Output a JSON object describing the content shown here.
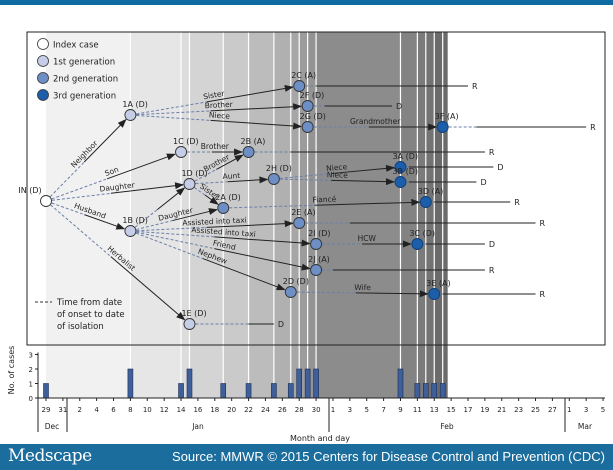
{
  "colors": {
    "index": "#ffffff",
    "gen1": "#c6cde6",
    "gen2": "#6e8fc6",
    "gen3": "#1c5ea9",
    "footer": "#1a6d9c",
    "bar": "#3f5f9a"
  },
  "legend": {
    "items": [
      {
        "label": "Index case",
        "gen": "index"
      },
      {
        "label": "1st generation",
        "gen": "gen1"
      },
      {
        "label": "2nd generation",
        "gen": "gen2"
      },
      {
        "label": "3rd generation",
        "gen": "gen3"
      }
    ],
    "dashed_note": [
      "Time from date",
      "of onset to date",
      "of isolation"
    ]
  },
  "nodes": [
    {
      "id": "IN",
      "label": "IN (D)",
      "gen": "index",
      "onset": "Dec 29"
    },
    {
      "id": "1A",
      "label": "1A (D)",
      "gen": "gen1",
      "onset": "Jan 8"
    },
    {
      "id": "1B",
      "label": "1B (D)",
      "gen": "gen1",
      "onset": "Jan 8"
    },
    {
      "id": "1C",
      "label": "1C (D)",
      "gen": "gen1",
      "onset": "Jan 14"
    },
    {
      "id": "1D",
      "label": "1D (D)",
      "gen": "gen1",
      "onset": "Jan 15"
    },
    {
      "id": "1E",
      "label": "1E (D)",
      "gen": "gen1",
      "onset": "Jan 15",
      "isolated": "Jan 22",
      "outcome": "D",
      "outcome_date": "Jan 25"
    },
    {
      "id": "2A",
      "label": "2A (D)",
      "gen": "gen2",
      "onset": "Jan 19"
    },
    {
      "id": "2B",
      "label": "2B (A)",
      "gen": "gen2",
      "onset": "Jan 22",
      "isolated": "Jan 27",
      "outcome": "R",
      "outcome_date": "Feb 19"
    },
    {
      "id": "2C",
      "label": "2C (A)",
      "gen": "gen2",
      "onset": "Jan 28",
      "isolated": "Jan 30",
      "outcome": "R",
      "outcome_date": "Feb 17"
    },
    {
      "id": "2D",
      "label": "2D (D)",
      "gen": "gen2",
      "onset": "Jan 27"
    },
    {
      "id": "2E",
      "label": "2E (A)",
      "gen": "gen2",
      "onset": "Jan 28",
      "isolated": "Feb 3",
      "outcome": "R",
      "outcome_date": "Feb 25"
    },
    {
      "id": "2F",
      "label": "2F (D)",
      "gen": "gen2",
      "onset": "Jan 29",
      "isolated": "Jan 31",
      "outcome": "D",
      "outcome_date": "Feb 8"
    },
    {
      "id": "2G",
      "label": "2G (D)",
      "gen": "gen2",
      "onset": "Jan 29"
    },
    {
      "id": "2H",
      "label": "2H (D)",
      "gen": "gen2",
      "onset": "Jan 25"
    },
    {
      "id": "2I",
      "label": "2I (D)",
      "gen": "gen2",
      "onset": "Jan 30"
    },
    {
      "id": "2J",
      "label": "2J (A)",
      "gen": "gen2",
      "onset": "Jan 30",
      "isolated": "Feb 1",
      "outcome": "R",
      "outcome_date": "Feb 19"
    },
    {
      "id": "3A",
      "label": "3A (D)",
      "gen": "gen3",
      "onset": "Feb 9",
      "isolated": "Feb 10",
      "outcome": "D",
      "outcome_date": "Feb 20"
    },
    {
      "id": "3B",
      "label": "3B (D)",
      "gen": "gen3",
      "onset": "Feb 9",
      "isolated": "Feb 10",
      "outcome": "D",
      "outcome_date": "Feb 18"
    },
    {
      "id": "3C",
      "label": "3C (D)",
      "gen": "gen3",
      "onset": "Feb 11",
      "isolated": "Feb 12",
      "outcome": "D",
      "outcome_date": "Feb 19"
    },
    {
      "id": "3D",
      "label": "3D (A)",
      "gen": "gen3",
      "onset": "Feb 12",
      "isolated": "Feb 13",
      "outcome": "R",
      "outcome_date": "Feb 22"
    },
    {
      "id": "3E",
      "label": "3E (A)",
      "gen": "gen3",
      "onset": "Feb 13",
      "isolated": "Feb 14",
      "outcome": "R",
      "outcome_date": "Feb 25"
    },
    {
      "id": "3F",
      "label": "3F (A)",
      "gen": "gen3",
      "onset": "Feb 14",
      "isolated": "Feb 18",
      "outcome": "R",
      "outcome_date": "Mar 3"
    }
  ],
  "edges": [
    {
      "from": "IN",
      "to": "1A",
      "label": "Neighbor"
    },
    {
      "from": "IN",
      "to": "1C",
      "label": "Son"
    },
    {
      "from": "IN",
      "to": "1D",
      "label": "Daughter"
    },
    {
      "from": "IN",
      "to": "1B",
      "label": "Husband"
    },
    {
      "from": "IN",
      "to": "1E",
      "label": "Herbalist"
    },
    {
      "from": "1A",
      "to": "2C",
      "label": "Sister"
    },
    {
      "from": "1A",
      "to": "2F",
      "label": "Brother"
    },
    {
      "from": "1A",
      "to": "2G",
      "label": "Niece"
    },
    {
      "from": "1C",
      "to": "2B",
      "label": "Brother"
    },
    {
      "from": "1D",
      "to": "2B",
      "label": "Brother"
    },
    {
      "from": "1D",
      "to": "2H",
      "label": "Aunt"
    },
    {
      "from": "1D",
      "to": "2A",
      "label": "Sister"
    },
    {
      "from": "1B",
      "to": "1D",
      "label": ""
    },
    {
      "from": "1B",
      "to": "2A",
      "label": "Daughter"
    },
    {
      "from": "1B",
      "to": "2E",
      "label": "Assisted into taxi"
    },
    {
      "from": "1B",
      "to": "2I",
      "label": "Assisted into taxi"
    },
    {
      "from": "1B",
      "to": "2J",
      "label": "Friend"
    },
    {
      "from": "1B",
      "to": "2D",
      "label": "Nephew"
    },
    {
      "from": "2G",
      "to": "3F",
      "label": "Grandmother"
    },
    {
      "from": "2H",
      "to": "3A",
      "label": "Niece"
    },
    {
      "from": "2H",
      "to": "3B",
      "label": "Niece"
    },
    {
      "from": "2A",
      "to": "3D",
      "label": "Fiancé"
    },
    {
      "from": "2I",
      "to": "3C",
      "label": "HCW"
    },
    {
      "from": "2D",
      "to": "3E",
      "label": "Wife"
    }
  ],
  "chart_data": {
    "type": "bar",
    "ylabel": "No. of cases",
    "xlabel": "Month and day",
    "ylim": [
      0,
      3
    ],
    "yticks": [
      "0",
      "1",
      "2",
      "3"
    ],
    "x_tick_labels": [
      "29",
      "31",
      "2",
      "4",
      "6",
      "8",
      "10",
      "12",
      "14",
      "16",
      "18",
      "20",
      "22",
      "24",
      "26",
      "28",
      "30",
      "1",
      "3",
      "5",
      "7",
      "9",
      "11",
      "13",
      "15",
      "17",
      "19",
      "21",
      "23",
      "25",
      "27",
      "1",
      "3",
      "5"
    ],
    "months": [
      "Dec",
      "Jan",
      "Feb",
      "Mar"
    ],
    "categories": [
      "Dec 29",
      "Jan 8",
      "Jan 14",
      "Jan 15",
      "Jan 19",
      "Jan 22",
      "Jan 25",
      "Jan 27",
      "Jan 28",
      "Jan 29",
      "Jan 30",
      "Feb 9",
      "Feb 11",
      "Feb 12",
      "Feb 13",
      "Feb 14"
    ],
    "values": [
      1,
      2,
      1,
      2,
      1,
      1,
      1,
      1,
      2,
      2,
      2,
      2,
      1,
      1,
      1,
      1
    ]
  },
  "footer": {
    "brand": "Medscape",
    "source": "Source: MMWR © 2015 Centers for Disease Control and Prevention (CDC)"
  }
}
